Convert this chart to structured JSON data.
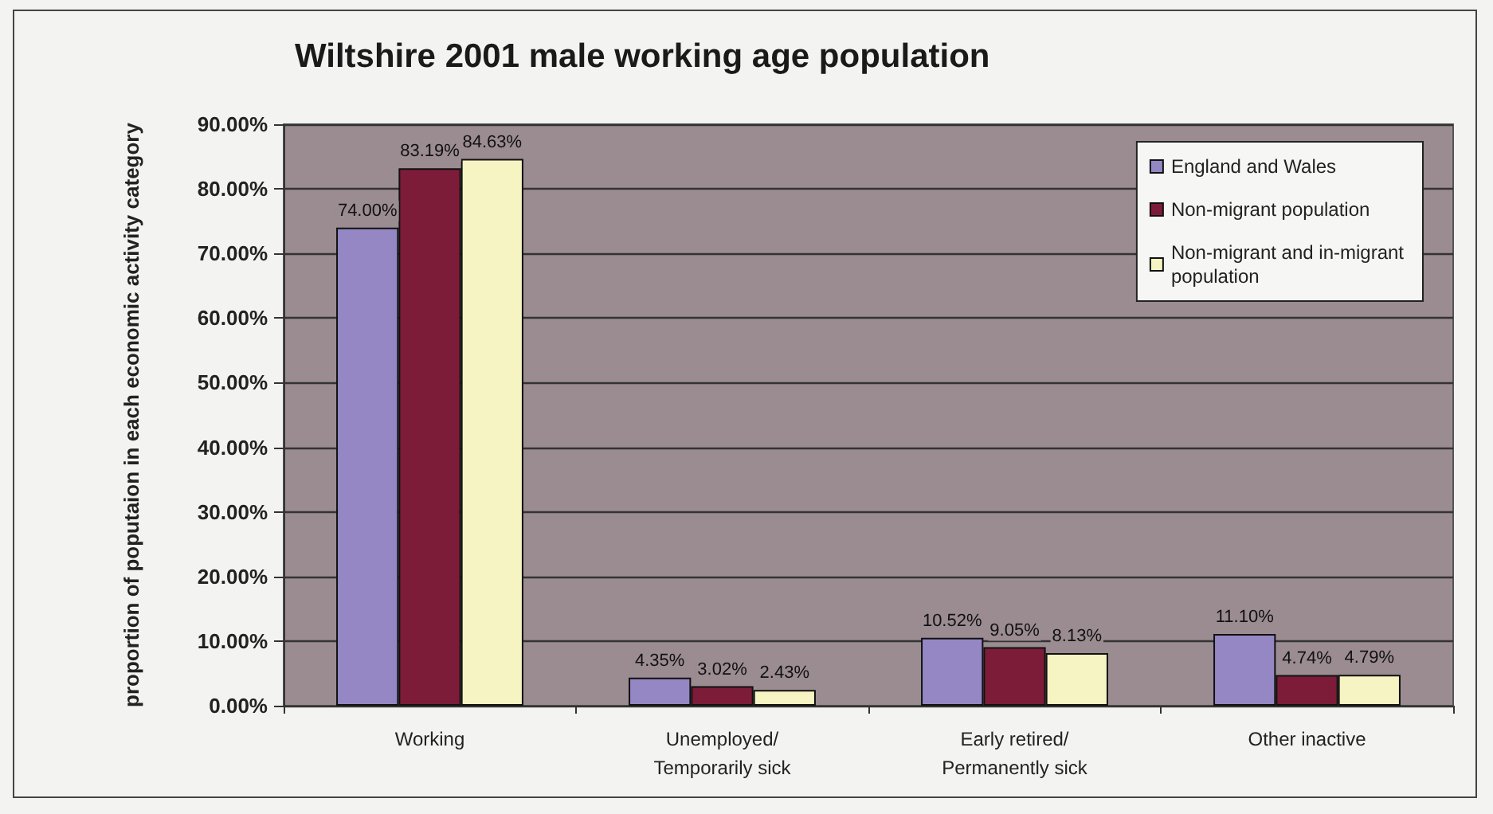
{
  "chart_data": {
    "type": "bar",
    "title": "Wiltshire 2001 male working age population",
    "ylabel": "proportion of poputaion in each economic activity category",
    "categories": [
      "Working",
      "Unemployed/\nTemporarily sick",
      "Early retired/\nPermanently sick",
      "Other inactive"
    ],
    "series": [
      {
        "name": "England and Wales",
        "color": "#9487c4",
        "values": [
          74.0,
          4.35,
          10.52,
          11.1
        ],
        "value_labels": [
          "74.00%",
          "4.35%",
          "10.52%",
          "11.10%"
        ]
      },
      {
        "name": "Non-migrant population",
        "color": "#7c1c38",
        "values": [
          83.19,
          3.02,
          9.05,
          4.74
        ],
        "value_labels": [
          "83.19%",
          "3.02%",
          "9.05%",
          "4.74%"
        ]
      },
      {
        "name": "Non-migrant and in-migrant\npopulation",
        "color": "#f6f4c2",
        "values": [
          84.63,
          2.43,
          8.13,
          4.79
        ],
        "value_labels": [
          "84.63%",
          "2.43%",
          "8.13%",
          "4.79%"
        ]
      }
    ],
    "ylim": [
      0,
      90
    ],
    "yticks": [
      {
        "value": 0,
        "label": "0.00%"
      },
      {
        "value": 10,
        "label": "10.00%"
      },
      {
        "value": 20,
        "label": "20.00%"
      },
      {
        "value": 30,
        "label": "30.00%"
      },
      {
        "value": 40,
        "label": "40.00%"
      },
      {
        "value": 50,
        "label": "50.00%"
      },
      {
        "value": 60,
        "label": "60.00%"
      },
      {
        "value": 70,
        "label": "70.00%"
      },
      {
        "value": 80,
        "label": "80.00%"
      },
      {
        "value": 90,
        "label": "90.00%"
      }
    ],
    "grid": "y",
    "legend": "top right"
  }
}
